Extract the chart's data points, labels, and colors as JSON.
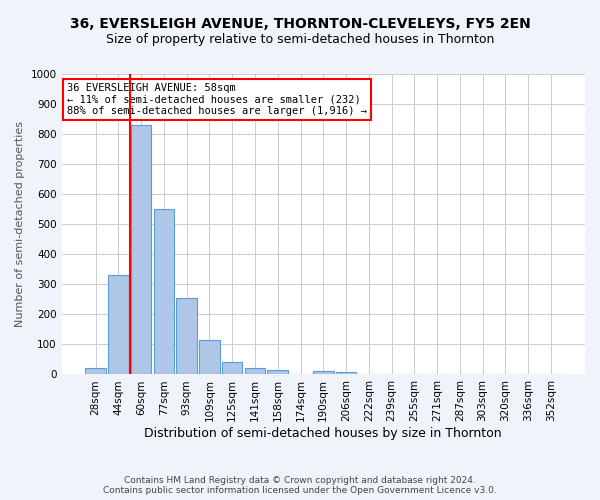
{
  "title": "36, EVERSLEIGH AVENUE, THORNTON-CLEVELEYS, FY5 2EN",
  "subtitle": "Size of property relative to semi-detached houses in Thornton",
  "xlabel": "Distribution of semi-detached houses by size in Thornton",
  "ylabel": "Number of semi-detached properties",
  "categories": [
    "28sqm",
    "44sqm",
    "60sqm",
    "77sqm",
    "93sqm",
    "109sqm",
    "125sqm",
    "141sqm",
    "158sqm",
    "174sqm",
    "190sqm",
    "206sqm",
    "222sqm",
    "239sqm",
    "255sqm",
    "271sqm",
    "287sqm",
    "303sqm",
    "320sqm",
    "336sqm",
    "352sqm"
  ],
  "values": [
    22,
    330,
    830,
    550,
    255,
    115,
    42,
    22,
    14,
    0,
    13,
    7,
    0,
    0,
    0,
    0,
    0,
    0,
    0,
    0,
    0
  ],
  "bar_color": "#aec6e8",
  "bar_edge_color": "#5a9fd4",
  "vline_index": 2,
  "annotation_title": "36 EVERSLEIGH AVENUE: 58sqm",
  "annotation_line1": "← 11% of semi-detached houses are smaller (232)",
  "annotation_line2": "88% of semi-detached houses are larger (1,916) →",
  "annotation_box_color": "white",
  "annotation_box_edge_color": "red",
  "vline_color": "red",
  "ylim": [
    0,
    1000
  ],
  "yticks": [
    0,
    100,
    200,
    300,
    400,
    500,
    600,
    700,
    800,
    900,
    1000
  ],
  "footer_line1": "Contains HM Land Registry data © Crown copyright and database right 2024.",
  "footer_line2": "Contains public sector information licensed under the Open Government Licence v3.0.",
  "bg_color": "#f0f4fa",
  "plot_bg_color": "white",
  "title_fontsize": 10,
  "subtitle_fontsize": 9,
  "ylabel_fontsize": 8,
  "xlabel_fontsize": 9,
  "tick_fontsize": 7.5,
  "footer_fontsize": 6.5,
  "annotation_fontsize": 7.5
}
